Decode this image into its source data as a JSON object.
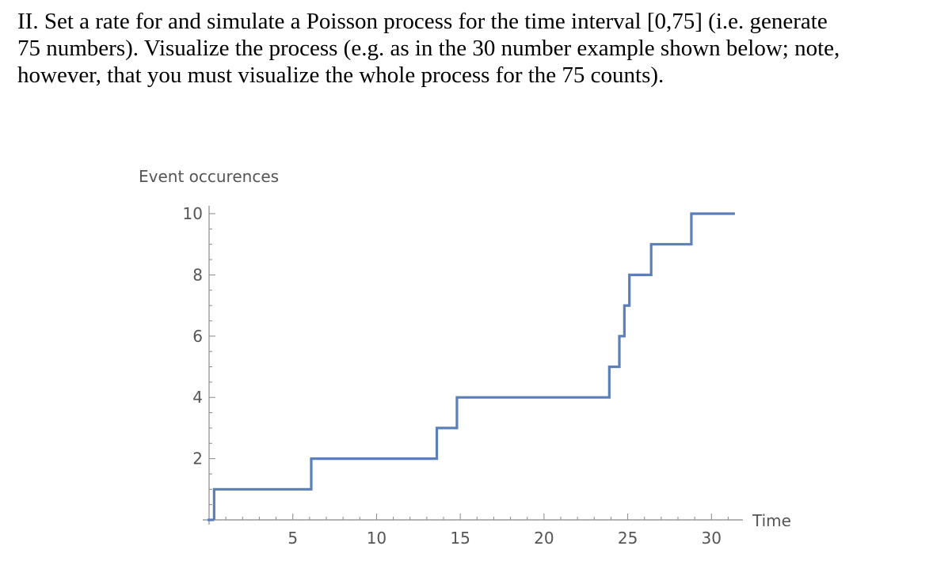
{
  "question": {
    "lines": [
      "II. Set a rate for and simulate a Poisson process for the time interval [0,75] (i.e. generate",
      "75 numbers). Visualize the process (e.g. as in the 30 number example shown below; note,",
      "however, that you must visualize the whole process for the 75 counts)."
    ]
  },
  "chart_data": {
    "type": "line",
    "step": true,
    "title": "",
    "xlabel": "Time",
    "ylabel": "Event occurences",
    "xlim": [
      0,
      31.5
    ],
    "ylim": [
      0,
      10
    ],
    "xticks": [
      5,
      10,
      15,
      20,
      25,
      30
    ],
    "yticks": [
      2,
      4,
      6,
      8,
      10
    ],
    "grid": false,
    "line_color": "#5b7fb8",
    "series": [
      {
        "x": [
          0.3,
          6.1,
          13.6,
          14.8,
          23.9,
          24.5,
          24.8,
          25.1,
          26.4,
          28.8,
          31.4
        ],
        "y": [
          1,
          2,
          3,
          4,
          5,
          6,
          7,
          8,
          9,
          10,
          10
        ]
      }
    ]
  }
}
